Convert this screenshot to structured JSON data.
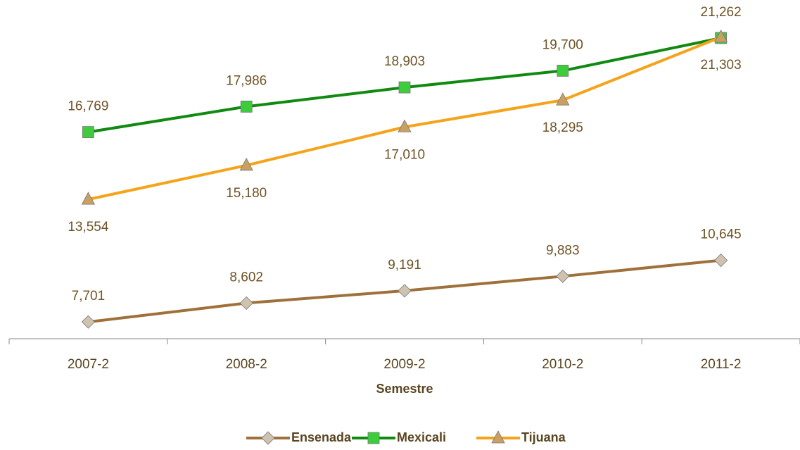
{
  "chart_data": {
    "type": "line",
    "categories": [
      "2007-2",
      "2008-2",
      "2009-2",
      "2010-2",
      "2011-2"
    ],
    "x_label": "Semestre",
    "ylim": [
      6900,
      21900
    ],
    "legend": "bottom",
    "series": [
      {
        "name": "Ensenada",
        "color": "#a0703a",
        "marker": "diamond",
        "marker_color": "#cfc3b0",
        "values": [
          7701,
          8602,
          9191,
          9883,
          10645
        ],
        "value_labels": [
          "7,701",
          "8,602",
          "9,191",
          "9,883",
          "10,645"
        ],
        "label_position": "above"
      },
      {
        "name": "Mexicali",
        "color": "#108a10",
        "marker": "square",
        "marker_color": "#3ccc3c",
        "values": [
          16769,
          17986,
          18903,
          19700,
          21262
        ],
        "value_labels": [
          "16,769",
          "17,986",
          "18,903",
          "19,700",
          "21,262"
        ],
        "label_position": "above"
      },
      {
        "name": "Tijuana",
        "color": "#f5a31a",
        "marker": "triangle",
        "marker_color": "#c9a062",
        "values": [
          13554,
          15180,
          17010,
          18295,
          21303
        ],
        "value_labels": [
          "13,554",
          "15,180",
          "17,010",
          "18,295",
          "21,303"
        ],
        "label_position": "below"
      }
    ]
  }
}
